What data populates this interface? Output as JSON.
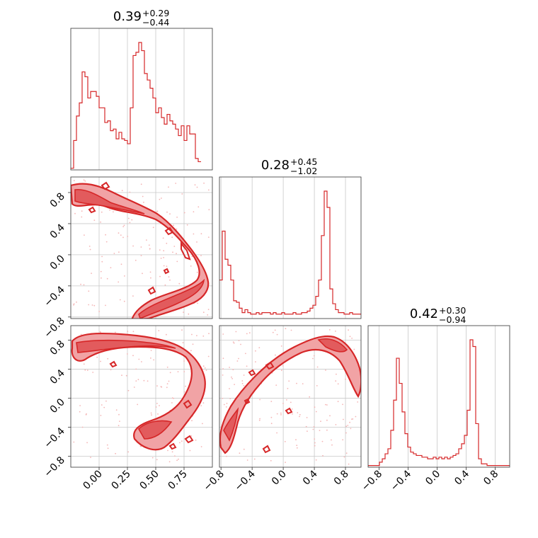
{
  "chart_data": {
    "type": "corner",
    "color": "#d62728",
    "parameters": [
      {
        "title": "0.39",
        "upper": "+0.29",
        "lower": "−0.44"
      },
      {
        "title": "0.28",
        "upper": "+0.45",
        "lower": "−1.02"
      },
      {
        "title": "0.42",
        "upper": "+0.30",
        "lower": "−0.94"
      }
    ],
    "ranges": [
      [
        -0.25,
        1.0
      ],
      [
        -0.82,
        1.0
      ],
      [
        -0.95,
        1.0
      ]
    ],
    "ticks": {
      "p0": [
        "0.00",
        "0.25",
        "0.50",
        "0.75"
      ],
      "p0_values": [
        0.0,
        0.25,
        0.5,
        0.75
      ],
      "p1": [
        "−0.8",
        "−0.4",
        "0.0",
        "0.4",
        "0.8"
      ],
      "p1_values": [
        -0.8,
        -0.4,
        0.0,
        0.4,
        0.8
      ],
      "p2": [
        "−0.8",
        "−0.4",
        "0.0",
        "0.4",
        "0.8"
      ],
      "p2_values": [
        -0.8,
        -0.4,
        0.0,
        0.4,
        0.8
      ]
    },
    "histograms": [
      {
        "param": 0,
        "bin_start": -0.25,
        "bin_width": 0.025,
        "counts": [
          1,
          18,
          33,
          41,
          60,
          57,
          44,
          48,
          48,
          45,
          38,
          38,
          29,
          30,
          24,
          25,
          19,
          23,
          19,
          18,
          16,
          38,
          70,
          72,
          78,
          73,
          59,
          55,
          50,
          44,
          35,
          38,
          32,
          28,
          34,
          30,
          28,
          25,
          21,
          27,
          18,
          27,
          22,
          22,
          7,
          5
        ]
      },
      {
        "param": 1,
        "bin_start": -0.82,
        "bin_width": 0.0364,
        "counts": [
          26,
          59,
          40,
          36,
          26,
          12,
          11,
          7,
          4,
          6,
          4,
          3,
          3,
          4,
          3,
          4,
          4,
          4,
          3,
          4,
          3,
          3,
          4,
          3,
          3,
          3,
          4,
          3,
          3,
          4,
          4,
          5,
          7,
          9,
          15,
          26,
          56,
          86,
          75,
          20,
          10,
          6,
          4,
          4,
          3,
          3,
          4,
          3,
          3,
          3
        ]
      },
      {
        "param": 2,
        "bin_start": -0.95,
        "bin_width": 0.039,
        "counts": [
          1,
          1,
          1,
          1,
          3,
          5,
          8,
          11,
          22,
          40,
          65,
          50,
          33,
          20,
          12,
          9,
          8,
          7,
          7,
          6,
          6,
          5,
          5,
          6,
          5,
          6,
          5,
          6,
          5,
          6,
          7,
          8,
          11,
          14,
          19,
          34,
          76,
          72,
          26,
          5,
          2,
          2,
          1,
          1,
          1,
          1,
          1,
          1,
          1,
          1
        ]
      }
    ],
    "contour_panels": [
      {
        "x_param": 0,
        "y_param": 1,
        "structure": "arc from upper-left (0.0,0.8) through (0.9,0.1) down to lower-left (0.35,-0.8)"
      },
      {
        "x_param": 0,
        "y_param": 2,
        "structure": "arc from upper-left (0.0,0.7) curving right to (0.9,0.1) and back to (0.45,-0.5)"
      },
      {
        "x_param": 1,
        "y_param": 2,
        "structure": "arc from lower-left (-0.8,-0.45) up through (0.4,0.8) to (1.0,0.1)"
      }
    ]
  }
}
